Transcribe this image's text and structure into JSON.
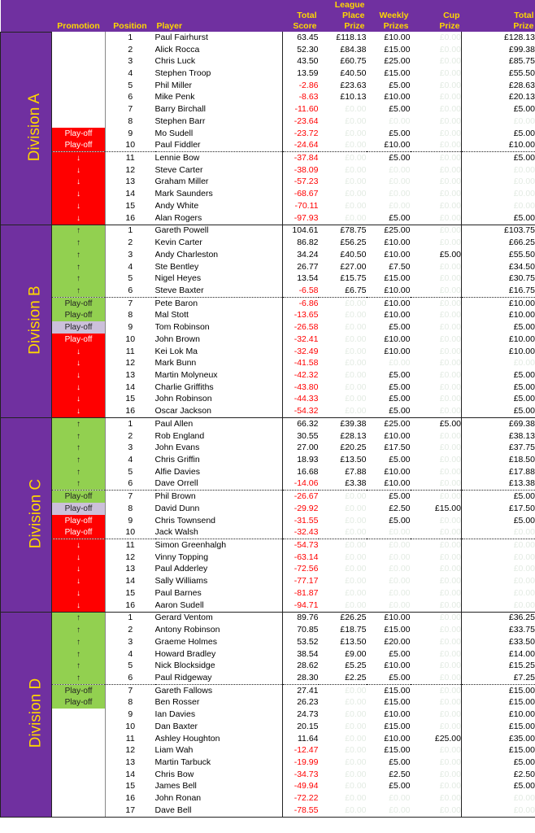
{
  "columns": {
    "promotion": "Promotion",
    "position": "Position",
    "player": "Player",
    "total_score": [
      "Total",
      "Score"
    ],
    "league_place_prize": [
      "League",
      "Place",
      "Prize"
    ],
    "weekly_prizes": [
      "Weekly",
      "Prizes"
    ],
    "cup_prize": [
      "Cup",
      "Prize"
    ],
    "total_prize": [
      "Total",
      "Prize"
    ]
  },
  "zero_value": "£0.00",
  "divisions": [
    {
      "name": "Division A",
      "dotted_after": [
        10
      ],
      "rows": [
        {
          "promo": "",
          "promo_style": "white",
          "pos": "1",
          "player": "Paul Fairhurst",
          "score": "63.45",
          "league": "£118.13",
          "weekly": "£10.00",
          "cup": "",
          "total": "£128.13"
        },
        {
          "promo": "",
          "promo_style": "white",
          "pos": "2",
          "player": "Alick Rocca",
          "score": "52.30",
          "league": "£84.38",
          "weekly": "£15.00",
          "cup": "",
          "total": "£99.38"
        },
        {
          "promo": "",
          "promo_style": "white",
          "pos": "3",
          "player": "Chris Luck",
          "score": "43.50",
          "league": "£60.75",
          "weekly": "£25.00",
          "cup": "",
          "total": "£85.75"
        },
        {
          "promo": "",
          "promo_style": "white",
          "pos": "4",
          "player": "Stephen Troop",
          "score": "13.59",
          "league": "£40.50",
          "weekly": "£15.00",
          "cup": "",
          "total": "£55.50"
        },
        {
          "promo": "",
          "promo_style": "white",
          "pos": "5",
          "player": "Phil Miller",
          "score": "-2.86",
          "league": "£23.63",
          "weekly": "£5.00",
          "cup": "",
          "total": "£28.63"
        },
        {
          "promo": "",
          "promo_style": "white",
          "pos": "6",
          "player": "Mike Penk",
          "score": "-8.63",
          "league": "£10.13",
          "weekly": "£10.00",
          "cup": "",
          "total": "£20.13"
        },
        {
          "promo": "",
          "promo_style": "white",
          "pos": "7",
          "player": "Barry Birchall",
          "score": "-11.60",
          "league": "",
          "weekly": "£5.00",
          "cup": "",
          "total": "£5.00"
        },
        {
          "promo": "",
          "promo_style": "white",
          "pos": "8",
          "player": "Stephen Barr",
          "score": "-23.64",
          "league": "",
          "weekly": "",
          "cup": "",
          "total": ""
        },
        {
          "promo": "Play-off",
          "promo_style": "red",
          "pos": "9",
          "player": "Mo Sudell",
          "score": "-23.72",
          "league": "",
          "weekly": "£5.00",
          "cup": "",
          "total": "£5.00"
        },
        {
          "promo": "Play-off",
          "promo_style": "red",
          "pos": "10",
          "player": "Paul Fiddler",
          "score": "-24.64",
          "league": "",
          "weekly": "£10.00",
          "cup": "",
          "total": "£10.00"
        },
        {
          "promo": "↓",
          "promo_style": "red",
          "pos": "11",
          "player": "Lennie Bow",
          "score": "-37.84",
          "league": "",
          "weekly": "£5.00",
          "cup": "",
          "total": "£5.00"
        },
        {
          "promo": "↓",
          "promo_style": "red",
          "pos": "12",
          "player": "Steve Carter",
          "score": "-38.09",
          "league": "",
          "weekly": "",
          "cup": "",
          "total": ""
        },
        {
          "promo": "↓",
          "promo_style": "red",
          "pos": "13",
          "player": "Graham Miller",
          "score": "-57.23",
          "league": "",
          "weekly": "",
          "cup": "",
          "total": ""
        },
        {
          "promo": "↓",
          "promo_style": "red",
          "pos": "14",
          "player": "Mark Saunders",
          "score": "-68.67",
          "league": "",
          "weekly": "",
          "cup": "",
          "total": ""
        },
        {
          "promo": "↓",
          "promo_style": "red",
          "pos": "15",
          "player": "Andy White",
          "score": "-70.11",
          "league": "",
          "weekly": "",
          "cup": "",
          "total": ""
        },
        {
          "promo": "↓",
          "promo_style": "red",
          "pos": "16",
          "player": "Alan Rogers",
          "score": "-97.93",
          "league": "",
          "weekly": "£5.00",
          "cup": "",
          "total": "£5.00"
        }
      ]
    },
    {
      "name": "Division B",
      "dotted_after": [
        6
      ],
      "rows": [
        {
          "promo": "↑",
          "promo_style": "green",
          "pos": "1",
          "player": "Gareth Powell",
          "score": "104.61",
          "league": "£78.75",
          "weekly": "£25.00",
          "cup": "",
          "total": "£103.75"
        },
        {
          "promo": "↑",
          "promo_style": "green",
          "pos": "2",
          "player": "Kevin Carter",
          "score": "86.82",
          "league": "£56.25",
          "weekly": "£10.00",
          "cup": "",
          "total": "£66.25"
        },
        {
          "promo": "↑",
          "promo_style": "green",
          "pos": "3",
          "player": "Andy Charleston",
          "score": "34.24",
          "league": "£40.50",
          "weekly": "£10.00",
          "cup": "£5.00",
          "total": "£55.50"
        },
        {
          "promo": "↑",
          "promo_style": "green",
          "pos": "4",
          "player": "Ste Bentley",
          "score": "26.77",
          "league": "£27.00",
          "weekly": "£7.50",
          "cup": "",
          "total": "£34.50"
        },
        {
          "promo": "↑",
          "promo_style": "green",
          "pos": "5",
          "player": "Nigel Heyes",
          "score": "13.54",
          "league": "£15.75",
          "weekly": "£15.00",
          "cup": "",
          "total": "£30.75"
        },
        {
          "promo": "↑",
          "promo_style": "green",
          "pos": "6",
          "player": "Steve Baxter",
          "score": "-6.58",
          "league": "£6.75",
          "weekly": "£10.00",
          "cup": "",
          "total": "£16.75"
        },
        {
          "promo": "Play-off",
          "promo_style": "green",
          "pos": "7",
          "player": "Pete Baron",
          "score": "-6.86",
          "league": "",
          "weekly": "£10.00",
          "cup": "",
          "total": "£10.00"
        },
        {
          "promo": "Play-off",
          "promo_style": "green",
          "pos": "8",
          "player": "Mal Stott",
          "score": "-13.65",
          "league": "",
          "weekly": "£10.00",
          "cup": "",
          "total": "£10.00"
        },
        {
          "promo": "Play-off",
          "promo_style": "lilac",
          "pos": "9",
          "player": "Tom Robinson",
          "score": "-26.58",
          "league": "",
          "weekly": "£5.00",
          "cup": "",
          "total": "£5.00"
        },
        {
          "promo": "Play-off",
          "promo_style": "red",
          "pos": "10",
          "player": "John Brown",
          "score": "-32.41",
          "league": "",
          "weekly": "£10.00",
          "cup": "",
          "total": "£10.00"
        },
        {
          "promo": "↓",
          "promo_style": "red",
          "pos": "11",
          "player": "Kei Lok Ma",
          "score": "-32.49",
          "league": "",
          "weekly": "£10.00",
          "cup": "",
          "total": "£10.00"
        },
        {
          "promo": "↓",
          "promo_style": "red",
          "pos": "12",
          "player": "Mark Bunn",
          "score": "-41.58",
          "league": "",
          "weekly": "",
          "cup": "",
          "total": ""
        },
        {
          "promo": "↓",
          "promo_style": "red",
          "pos": "13",
          "player": "Martin Molyneux",
          "score": "-42.32",
          "league": "",
          "weekly": "£5.00",
          "cup": "",
          "total": "£5.00"
        },
        {
          "promo": "↓",
          "promo_style": "red",
          "pos": "14",
          "player": "Charlie Griffiths",
          "score": "-43.80",
          "league": "",
          "weekly": "£5.00",
          "cup": "",
          "total": "£5.00"
        },
        {
          "promo": "↓",
          "promo_style": "red",
          "pos": "15",
          "player": "John Robinson",
          "score": "-44.33",
          "league": "",
          "weekly": "£5.00",
          "cup": "",
          "total": "£5.00"
        },
        {
          "promo": "↓",
          "promo_style": "red",
          "pos": "16",
          "player": "Oscar Jackson",
          "score": "-54.32",
          "league": "",
          "weekly": "£5.00",
          "cup": "",
          "total": "£5.00"
        }
      ]
    },
    {
      "name": "Division C",
      "dotted_after": [
        6,
        10
      ],
      "rows": [
        {
          "promo": "↑",
          "promo_style": "green",
          "pos": "1",
          "player": "Paul Allen",
          "score": "66.32",
          "league": "£39.38",
          "weekly": "£25.00",
          "cup": "£5.00",
          "total": "£69.38"
        },
        {
          "promo": "↑",
          "promo_style": "green",
          "pos": "2",
          "player": "Rob England",
          "score": "30.55",
          "league": "£28.13",
          "weekly": "£10.00",
          "cup": "",
          "total": "£38.13"
        },
        {
          "promo": "↑",
          "promo_style": "green",
          "pos": "3",
          "player": "John Evans",
          "score": "27.00",
          "league": "£20.25",
          "weekly": "£17.50",
          "cup": "",
          "total": "£37.75"
        },
        {
          "promo": "↑",
          "promo_style": "green",
          "pos": "4",
          "player": "Chris Griffin",
          "score": "18.93",
          "league": "£13.50",
          "weekly": "£5.00",
          "cup": "",
          "total": "£18.50"
        },
        {
          "promo": "↑",
          "promo_style": "green",
          "pos": "5",
          "player": "Alfie Davies",
          "score": "16.68",
          "league": "£7.88",
          "weekly": "£10.00",
          "cup": "",
          "total": "£17.88"
        },
        {
          "promo": "↑",
          "promo_style": "green",
          "pos": "6",
          "player": "Dave Orrell",
          "score": "-14.06",
          "league": "£3.38",
          "weekly": "£10.00",
          "cup": "",
          "total": "£13.38"
        },
        {
          "promo": "Play-off",
          "promo_style": "green",
          "pos": "7",
          "player": "Phil Brown",
          "score": "-26.67",
          "league": "",
          "weekly": "£5.00",
          "cup": "",
          "total": "£5.00"
        },
        {
          "promo": "Play-off",
          "promo_style": "lilac",
          "pos": "8",
          "player": "David Dunn",
          "score": "-29.92",
          "league": "",
          "weekly": "£2.50",
          "cup": "£15.00",
          "total": "£17.50"
        },
        {
          "promo": "Play-off",
          "promo_style": "red",
          "pos": "9",
          "player": "Chris Townsend",
          "score": "-31.55",
          "league": "",
          "weekly": "£5.00",
          "cup": "",
          "total": "£5.00"
        },
        {
          "promo": "Play-off",
          "promo_style": "red",
          "pos": "10",
          "player": "Jack Walsh",
          "score": "-32.43",
          "league": "",
          "weekly": "",
          "cup": "",
          "total": ""
        },
        {
          "promo": "↓",
          "promo_style": "red",
          "pos": "11",
          "player": "Simon Greenhalgh",
          "score": "-54.73",
          "league": "",
          "weekly": "",
          "cup": "",
          "total": ""
        },
        {
          "promo": "↓",
          "promo_style": "red",
          "pos": "12",
          "player": "Vinny Topping",
          "score": "-63.14",
          "league": "",
          "weekly": "",
          "cup": "",
          "total": ""
        },
        {
          "promo": "↓",
          "promo_style": "red",
          "pos": "13",
          "player": "Paul Adderley",
          "score": "-72.56",
          "league": "",
          "weekly": "",
          "cup": "",
          "total": ""
        },
        {
          "promo": "↓",
          "promo_style": "red",
          "pos": "14",
          "player": "Sally Williams",
          "score": "-77.17",
          "league": "",
          "weekly": "",
          "cup": "",
          "total": ""
        },
        {
          "promo": "↓",
          "promo_style": "red",
          "pos": "15",
          "player": "Paul Barnes",
          "score": "-81.87",
          "league": "",
          "weekly": "",
          "cup": "",
          "total": ""
        },
        {
          "promo": "↓",
          "promo_style": "red",
          "pos": "16",
          "player": "Aaron Sudell",
          "score": "-94.71",
          "league": "",
          "weekly": "",
          "cup": "",
          "total": ""
        }
      ]
    },
    {
      "name": "Division D",
      "dotted_after": [
        6
      ],
      "rows": [
        {
          "promo": "↑",
          "promo_style": "green",
          "pos": "1",
          "player": "Gerard Ventom",
          "score": "89.76",
          "league": "£26.25",
          "weekly": "£10.00",
          "cup": "",
          "total": "£36.25"
        },
        {
          "promo": "↑",
          "promo_style": "green",
          "pos": "2",
          "player": "Antony Robinson",
          "score": "70.85",
          "league": "£18.75",
          "weekly": "£15.00",
          "cup": "",
          "total": "£33.75"
        },
        {
          "promo": "↑",
          "promo_style": "green",
          "pos": "3",
          "player": "Graeme Holmes",
          "score": "53.52",
          "league": "£13.50",
          "weekly": "£20.00",
          "cup": "",
          "total": "£33.50"
        },
        {
          "promo": "↑",
          "promo_style": "green",
          "pos": "4",
          "player": "Howard Bradley",
          "score": "38.54",
          "league": "£9.00",
          "weekly": "£5.00",
          "cup": "",
          "total": "£14.00"
        },
        {
          "promo": "↑",
          "promo_style": "green",
          "pos": "5",
          "player": "Nick Blocksidge",
          "score": "28.62",
          "league": "£5.25",
          "weekly": "£10.00",
          "cup": "",
          "total": "£15.25"
        },
        {
          "promo": "↑",
          "promo_style": "green",
          "pos": "6",
          "player": "Paul Ridgeway",
          "score": "28.30",
          "league": "£2.25",
          "weekly": "£5.00",
          "cup": "",
          "total": "£7.25"
        },
        {
          "promo": "Play-off",
          "promo_style": "green",
          "pos": "7",
          "player": "Gareth Fallows",
          "score": "27.41",
          "league": "",
          "weekly": "£15.00",
          "cup": "",
          "total": "£15.00"
        },
        {
          "promo": "Play-off",
          "promo_style": "green",
          "pos": "8",
          "player": "Ben Rosser",
          "score": "26.23",
          "league": "",
          "weekly": "£15.00",
          "cup": "",
          "total": "£15.00"
        },
        {
          "promo": "",
          "promo_style": "white",
          "pos": "9",
          "player": "Ian Davies",
          "score": "24.73",
          "league": "",
          "weekly": "£10.00",
          "cup": "",
          "total": "£10.00"
        },
        {
          "promo": "",
          "promo_style": "white",
          "pos": "10",
          "player": "Dan Baxter",
          "score": "20.15",
          "league": "",
          "weekly": "£15.00",
          "cup": "",
          "total": "£15.00"
        },
        {
          "promo": "",
          "promo_style": "white",
          "pos": "11",
          "player": "Ashley Houghton",
          "score": "11.64",
          "league": "",
          "weekly": "£10.00",
          "cup": "£25.00",
          "total": "£35.00"
        },
        {
          "promo": "",
          "promo_style": "white",
          "pos": "12",
          "player": "Liam Wah",
          "score": "-12.47",
          "league": "",
          "weekly": "£15.00",
          "cup": "",
          "total": "£15.00"
        },
        {
          "promo": "",
          "promo_style": "white",
          "pos": "13",
          "player": "Martin Tarbuck",
          "score": "-19.99",
          "league": "",
          "weekly": "£5.00",
          "cup": "",
          "total": "£5.00"
        },
        {
          "promo": "",
          "promo_style": "white",
          "pos": "14",
          "player": "Chris Bow",
          "score": "-34.73",
          "league": "",
          "weekly": "£2.50",
          "cup": "",
          "total": "£2.50"
        },
        {
          "promo": "",
          "promo_style": "white",
          "pos": "15",
          "player": "James Bell",
          "score": "-49.94",
          "league": "",
          "weekly": "£5.00",
          "cup": "",
          "total": "£5.00"
        },
        {
          "promo": "",
          "promo_style": "white",
          "pos": "16",
          "player": "John Ronan",
          "score": "-72.22",
          "league": "",
          "weekly": "",
          "cup": "",
          "total": ""
        },
        {
          "promo": "",
          "promo_style": "white",
          "pos": "17",
          "player": "Dave Bell",
          "score": "-78.55",
          "league": "",
          "weekly": "",
          "cup": "",
          "total": ""
        }
      ]
    }
  ],
  "colors": {
    "header_bg": "#7030a0",
    "header_text": "#ffd700",
    "relegation": "#ff0000",
    "promotion": "#92d050",
    "playoff_alt": "#ccc0da",
    "negative": "#ff0000",
    "zero_text": "#e3ebe3"
  },
  "icons": {
    "up": "arrow-up-icon",
    "down": "arrow-down-icon"
  }
}
